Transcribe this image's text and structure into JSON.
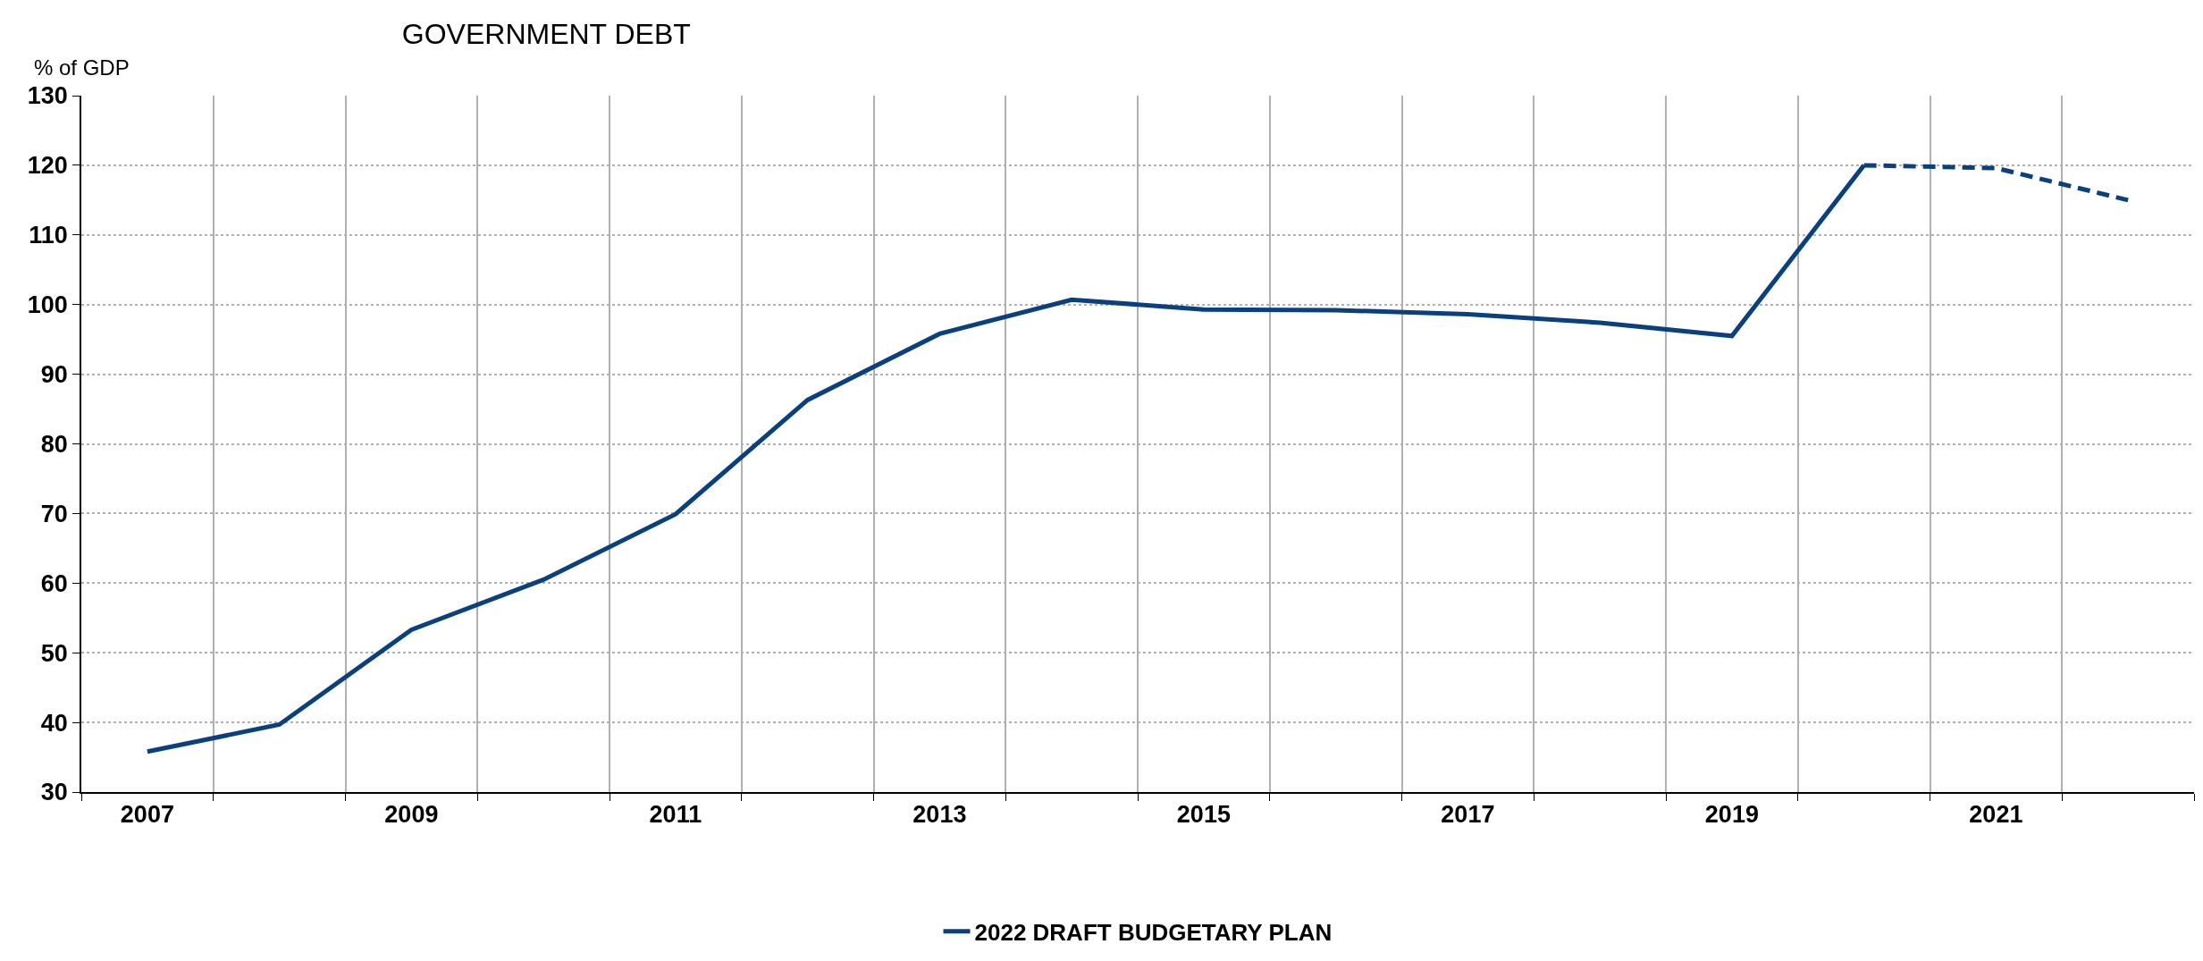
{
  "chart_data": {
    "type": "line",
    "title": "GOVERNMENT DEBT",
    "ylabel": "% of GDP",
    "categories": [
      "2007",
      null,
      "2009",
      null,
      "2011",
      null,
      "2013",
      null,
      "2015",
      null,
      "2017",
      null,
      "2019",
      null,
      "2021",
      null
    ],
    "series": [
      {
        "name": "2022 DRAFT BUDGETARY PLAN",
        "color": "#0b4080",
        "line_style": "solid",
        "values": [
          35.8,
          39.7,
          53.3,
          60.5,
          69.9,
          86.3,
          95.8,
          100.7,
          99.3,
          99.2,
          98.6,
          97.4,
          95.5,
          120.0,
          null,
          null
        ]
      },
      {
        "color": "#0b4080",
        "line_style": "dashed",
        "values": [
          null,
          null,
          null,
          null,
          null,
          null,
          null,
          null,
          null,
          null,
          null,
          null,
          null,
          120.0,
          119.6,
          115.0
        ]
      }
    ],
    "ylim": [
      30,
      130
    ],
    "yticks": [
      30,
      40,
      50,
      60,
      70,
      80,
      90,
      100,
      110,
      120,
      130
    ],
    "grid": true,
    "legend": "bottom",
    "marker": "none"
  }
}
